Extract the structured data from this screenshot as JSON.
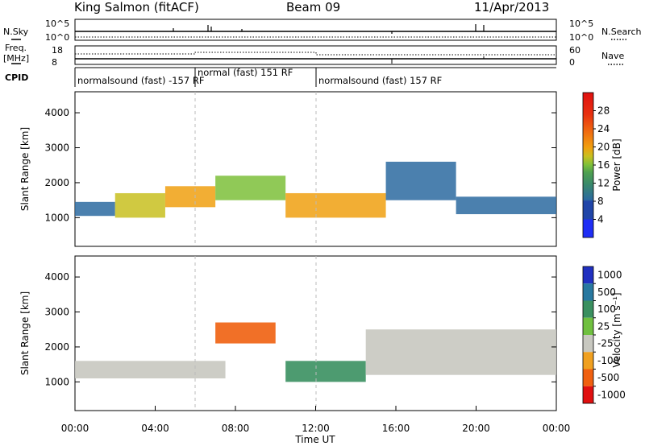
{
  "header": {
    "title": "King Salmon (fitACF)",
    "beam": "Beam 09",
    "date": "11/Apr/2013"
  },
  "strip_panels": {
    "nsky_label": "N.Sky",
    "nsky_ticks": [
      "10^5",
      "10^0"
    ],
    "nsearch_label": "N.Search",
    "nsearch_ticks": [
      "10^5",
      "10^0"
    ],
    "freq_label_top": "Freq.",
    "freq_label_bottom": "[MHz]",
    "freq_ticks": [
      "18",
      "8"
    ],
    "nave_label": "Nave",
    "nave_ticks": [
      "60",
      "0"
    ],
    "cpid_label": "CPID",
    "cpid_segments": [
      {
        "start_hour": 0,
        "end_hour": 6,
        "label": "normalsound (fast) -157 RF"
      },
      {
        "start_hour": 6,
        "end_hour": 12,
        "label": "normal (fast) 151 RF"
      },
      {
        "start_hour": 12,
        "end_hour": 24,
        "label": "normalsound (fast) 157 RF"
      }
    ]
  },
  "chart_data": [
    {
      "type": "heatmap",
      "name": "power-panel",
      "ylabel": "Slant Range [km]",
      "xlabel": "",
      "xlim": [
        0,
        24
      ],
      "ylim": [
        180,
        4600
      ],
      "y_ticks": [
        "1000",
        "2000",
        "3000",
        "4000"
      ],
      "y_tick_values": [
        1000,
        2000,
        3000,
        4000
      ],
      "colorbar": {
        "label": "Power [dB]",
        "range": [
          0,
          32
        ],
        "tick_labels": [
          "4",
          "8",
          "12",
          "16",
          "20",
          "24",
          "28"
        ],
        "tick_values": [
          4,
          8,
          12,
          16,
          20,
          24,
          28
        ],
        "colors": [
          "#1f2ef5",
          "#2045a8",
          "#2c6aa0",
          "#3a8a6a",
          "#4fa050",
          "#7cc03a",
          "#c8c020",
          "#f0a010",
          "#f07010",
          "#e83010",
          "#e01010"
        ]
      },
      "echo_bands": [
        {
          "start_hour": 0.0,
          "end_hour": 2.0,
          "range_low": 1050,
          "range_high": 1450,
          "power_db": 8
        },
        {
          "start_hour": 2.0,
          "end_hour": 4.5,
          "range_low": 1000,
          "range_high": 1700,
          "power_db": 18
        },
        {
          "start_hour": 4.5,
          "end_hour": 7.0,
          "range_low": 1300,
          "range_high": 1900,
          "power_db": 22
        },
        {
          "start_hour": 7.0,
          "end_hour": 10.5,
          "range_low": 1500,
          "range_high": 2200,
          "power_db": 16
        },
        {
          "start_hour": 10.5,
          "end_hour": 15.5,
          "range_low": 1000,
          "range_high": 1700,
          "power_db": 22
        },
        {
          "start_hour": 15.5,
          "end_hour": 19.0,
          "range_low": 1500,
          "range_high": 2600,
          "power_db": 8
        },
        {
          "start_hour": 19.0,
          "end_hour": 24.0,
          "range_low": 1100,
          "range_high": 1600,
          "power_db": 6
        }
      ]
    },
    {
      "type": "heatmap",
      "name": "velocity-panel",
      "ylabel": "Slant Range [km]",
      "xlabel": "Time UT",
      "xlim": [
        0,
        24
      ],
      "ylim": [
        180,
        4600
      ],
      "y_ticks": [
        "1000",
        "2000",
        "3000",
        "4000"
      ],
      "y_tick_values": [
        1000,
        2000,
        3000,
        4000
      ],
      "x_tick_labels": [
        "00:00",
        "04:00",
        "08:00",
        "12:00",
        "16:00",
        "20:00",
        "00:00"
      ],
      "x_tick_values": [
        0,
        4,
        8,
        12,
        16,
        20,
        24
      ],
      "colorbar": {
        "label": "Velocity [m s⁻¹]",
        "tick_labels": [
          "1000",
          "500",
          "100",
          "25",
          "-25",
          "-100",
          "-500",
          "-1000"
        ],
        "colors": [
          "#2030c0",
          "#2878a0",
          "#3a9060",
          "#70c040",
          "#c8c8c0",
          "#f0a020",
          "#f06010",
          "#e01010"
        ]
      },
      "echo_bands": [
        {
          "start_hour": 0.0,
          "end_hour": 7.5,
          "range_low": 1100,
          "range_high": 1600,
          "velocity_class": "-25"
        },
        {
          "start_hour": 7.0,
          "end_hour": 10.0,
          "range_low": 2100,
          "range_high": 2700,
          "velocity_class": "-500"
        },
        {
          "start_hour": 10.5,
          "end_hour": 14.5,
          "range_low": 1000,
          "range_high": 1600,
          "velocity_class": "100"
        },
        {
          "start_hour": 14.5,
          "end_hour": 24.0,
          "range_low": 1200,
          "range_high": 2500,
          "velocity_class": "-25"
        }
      ]
    }
  ]
}
